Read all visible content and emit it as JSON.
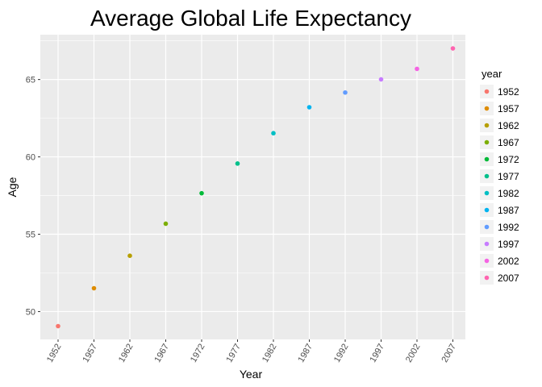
{
  "chart_data": {
    "type": "scatter",
    "title": "Average Global Life Expectancy",
    "xlabel": "Year",
    "ylabel": "Age",
    "x_ticks": [
      "1952",
      "1957",
      "1962",
      "1967",
      "1972",
      "1977",
      "1982",
      "1987",
      "1992",
      "1997",
      "2002",
      "2007"
    ],
    "y_ticks": [
      50,
      55,
      60,
      65
    ],
    "ylim": [
      48.2,
      67.9
    ],
    "grid": true,
    "legend_title": "year",
    "legend_position": "right",
    "points": [
      {
        "x": "1952",
        "y": 49.06,
        "color": "#F8766D"
      },
      {
        "x": "1957",
        "y": 51.51,
        "color": "#DE8C00"
      },
      {
        "x": "1962",
        "y": 53.61,
        "color": "#B79F00"
      },
      {
        "x": "1967",
        "y": 55.68,
        "color": "#7CAE00"
      },
      {
        "x": "1972",
        "y": 57.65,
        "color": "#00BA38"
      },
      {
        "x": "1977",
        "y": 59.57,
        "color": "#00C08B"
      },
      {
        "x": "1982",
        "y": 61.53,
        "color": "#00BFC4"
      },
      {
        "x": "1987",
        "y": 63.21,
        "color": "#00B4F0"
      },
      {
        "x": "1992",
        "y": 64.16,
        "color": "#619CFF"
      },
      {
        "x": "1997",
        "y": 65.01,
        "color": "#C77CFF"
      },
      {
        "x": "2002",
        "y": 65.69,
        "color": "#F564E3"
      },
      {
        "x": "2007",
        "y": 67.01,
        "color": "#FF64B0"
      }
    ]
  }
}
